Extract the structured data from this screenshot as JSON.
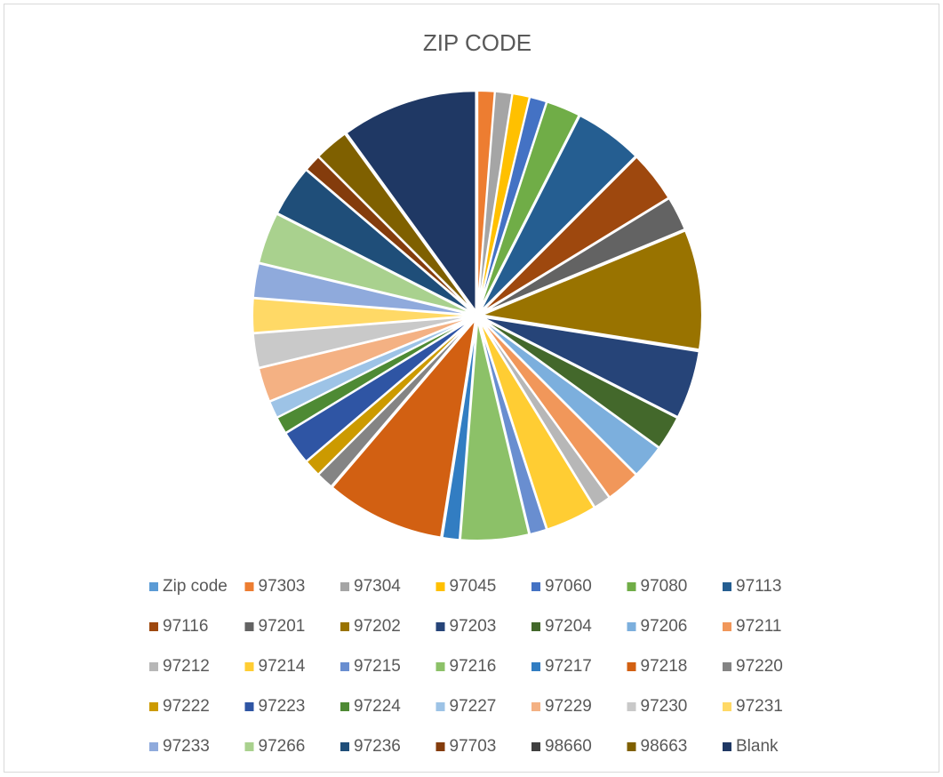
{
  "chart_data": {
    "type": "pie",
    "title": "ZIP CODE",
    "categories": [
      "Zip code",
      "97303",
      "97304",
      "97045",
      "97060",
      "97080",
      "97113",
      "97116",
      "97201",
      "97202",
      "97203",
      "97204",
      "97206",
      "97211",
      "97212",
      "97214",
      "97215",
      "97216",
      "97217",
      "97218",
      "97220",
      "97222",
      "97223",
      "97224",
      "97227",
      "97229",
      "97230",
      "97231",
      "97233",
      "97266",
      "97236",
      "97703",
      "98660",
      "98663",
      "Blank"
    ],
    "values": [
      0,
      1,
      1,
      1,
      1,
      2,
      4,
      3,
      2,
      7,
      4,
      2,
      2,
      2,
      1,
      3,
      1,
      4,
      1,
      7,
      1,
      1,
      2,
      1,
      1,
      2,
      2,
      2,
      2,
      3,
      3,
      1,
      0,
      2,
      8
    ],
    "colors": [
      "#5B9BD5",
      "#ED7D31",
      "#A5A5A5",
      "#FFC000",
      "#4472C4",
      "#70AD47",
      "#255E91",
      "#9E480E",
      "#636363",
      "#997300",
      "#264478",
      "#43682B",
      "#7CAFDD",
      "#F1975A",
      "#B7B7B7",
      "#FFCD33",
      "#698ED0",
      "#8CC168",
      "#327DC2",
      "#D26012",
      "#848484",
      "#CC9A00",
      "#2F55A4",
      "#4E8A34",
      "#9DC3E6",
      "#F4B183",
      "#C9C9C9",
      "#FFD966",
      "#8FAADC",
      "#A9D18E",
      "#1F4E79",
      "#843C0C",
      "#404040",
      "#7F6000",
      "#1F3864"
    ],
    "legend": "bottom"
  }
}
